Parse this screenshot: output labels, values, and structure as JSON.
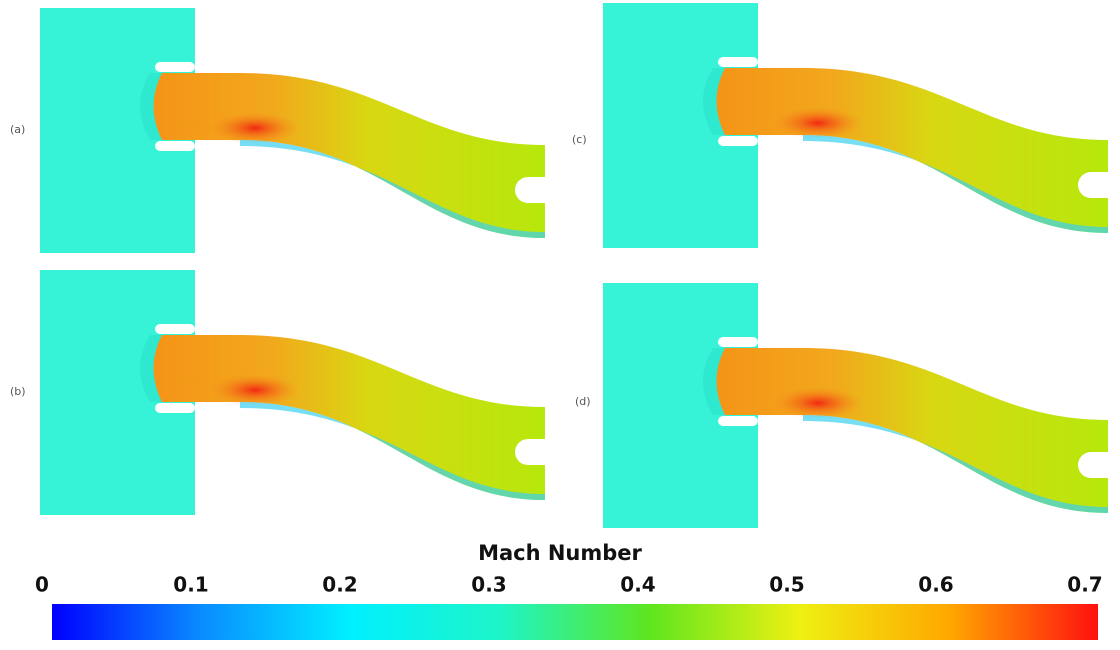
{
  "panels": [
    {
      "label": "(a)"
    },
    {
      "label": "(b)"
    },
    {
      "label": "(c)"
    },
    {
      "label": "(d)"
    }
  ],
  "colorbar": {
    "title": "Mach Number",
    "range": [
      0,
      0.7
    ],
    "ticks": [
      0,
      0.1,
      0.2,
      0.3,
      0.4,
      0.5,
      0.6,
      0.7
    ],
    "colormap": [
      "#0000ff",
      "#0a8cff",
      "#00f0ff",
      "#1ef5c8",
      "#5ee61e",
      "#eef012",
      "#ffa800",
      "#ff1010"
    ]
  }
}
